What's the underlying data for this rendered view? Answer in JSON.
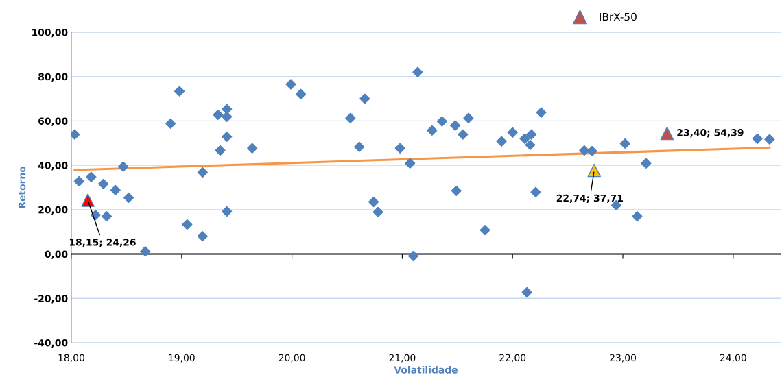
{
  "chart_data": {
    "type": "scatter",
    "xlabel": "Volatilidade",
    "ylabel": "Retorno",
    "xlim": [
      18,
      24.43
    ],
    "ylim": [
      -40,
      100
    ],
    "xticks": [
      {
        "value": 18,
        "label": "18,00"
      },
      {
        "value": 19,
        "label": "19,00"
      },
      {
        "value": 20,
        "label": "20,00"
      },
      {
        "value": 21,
        "label": "21,00"
      },
      {
        "value": 22,
        "label": "22,00"
      },
      {
        "value": 23,
        "label": "23,00"
      },
      {
        "value": 24,
        "label": "24,00"
      }
    ],
    "yticks": [
      {
        "value": -40,
        "label": "-40,00"
      },
      {
        "value": -20,
        "label": "-20,00"
      },
      {
        "value": 0,
        "label": "0,00"
      },
      {
        "value": 20,
        "label": "20,00"
      },
      {
        "value": 40,
        "label": "40,00"
      },
      {
        "value": 60,
        "label": "60,00"
      },
      {
        "value": 80,
        "label": "80,00"
      },
      {
        "value": 100,
        "label": "100,00"
      }
    ],
    "grid": "y",
    "legend": "top",
    "series": [
      {
        "marker": "diamond",
        "color": "#4f81bd",
        "x": [
          18.03,
          18.07,
          18.18,
          18.22,
          18.29,
          18.32,
          18.4,
          18.47,
          18.52,
          18.67,
          18.9,
          18.98,
          19.05,
          19.19,
          19.19,
          19.33,
          19.35,
          19.41,
          19.41,
          19.41,
          19.41,
          19.64,
          19.99,
          20.08,
          20.53,
          20.61,
          20.66,
          20.74,
          20.78,
          20.98,
          21.07,
          21.1,
          21.14,
          21.27,
          21.36,
          21.48,
          21.49,
          21.55,
          21.6,
          21.75,
          21.9,
          22.0,
          22.11,
          22.13,
          22.16,
          22.17,
          22.21,
          22.26,
          22.65,
          22.72,
          22.94,
          23.02,
          23.13,
          23.21,
          24.22,
          24.33
        ],
        "values": [
          53.9,
          32.8,
          34.7,
          17.6,
          31.6,
          17.0,
          28.8,
          39.4,
          25.4,
          1.2,
          58.8,
          73.4,
          13.3,
          36.8,
          8.0,
          62.8,
          46.7,
          61.9,
          65.3,
          52.9,
          19.2,
          47.7,
          76.5,
          72.1,
          61.3,
          48.3,
          70.0,
          23.5,
          18.9,
          47.7,
          40.9,
          -0.9,
          82.0,
          55.7,
          59.8,
          57.9,
          28.5,
          53.9,
          61.3,
          10.8,
          50.8,
          54.8,
          52.0,
          -17.3,
          49.2,
          53.9,
          27.9,
          63.8,
          46.7,
          46.4,
          22.0,
          49.8,
          17.0,
          40.9,
          52.0,
          51.7
        ]
      },
      {
        "type": "line",
        "marker": "none",
        "line_style": "solid",
        "color": "#f79646",
        "x": [
          18.03,
          24.33
        ],
        "values": [
          37.9,
          48.0
        ]
      },
      {
        "marker": "triangle",
        "color": "#ff0000",
        "x": [
          18.15
        ],
        "values": [
          24.26
        ],
        "value_labels": [
          "18,15; 24,26"
        ]
      },
      {
        "marker": "triangle",
        "color": "#ffc000",
        "x": [
          22.74
        ],
        "values": [
          37.71
        ],
        "value_labels": [
          "22,74; 37,71"
        ]
      },
      {
        "marker": "triangle",
        "name": "IBrX-50",
        "color": "#c0504d",
        "x": [
          23.4
        ],
        "values": [
          54.39
        ],
        "value_labels": [
          "23,40; 54,39"
        ]
      }
    ]
  }
}
